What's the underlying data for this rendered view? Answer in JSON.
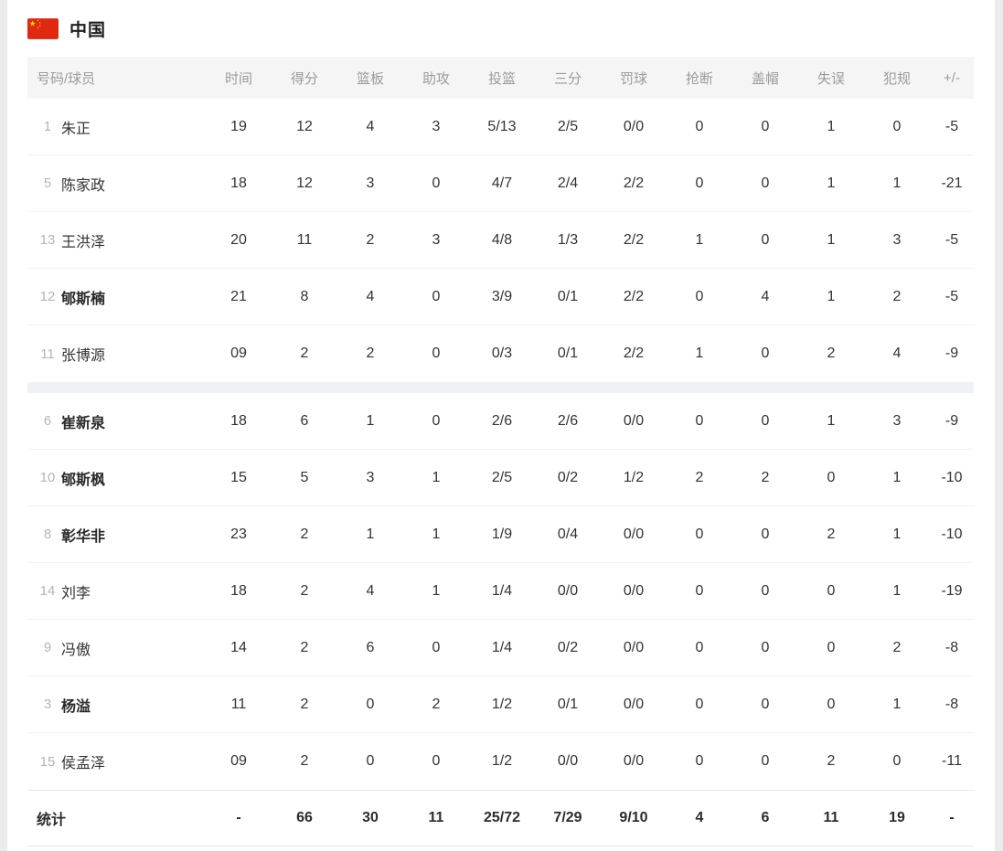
{
  "team": {
    "name": "中国",
    "flag_icon": "china-flag",
    "flag_colors": {
      "field": "#DE2910",
      "stars": "#FFDE00"
    }
  },
  "table": {
    "columns": [
      "号码/球员",
      "时间",
      "得分",
      "篮板",
      "助攻",
      "投篮",
      "三分",
      "罚球",
      "抢断",
      "盖帽",
      "失误",
      "犯规",
      "+/-"
    ],
    "starters_count": 5,
    "players": [
      {
        "number": "1",
        "name": "朱正",
        "bold": false,
        "stats": [
          "19",
          "12",
          "4",
          "3",
          "5/13",
          "2/5",
          "0/0",
          "0",
          "0",
          "1",
          "0",
          "-5"
        ]
      },
      {
        "number": "5",
        "name": "陈家政",
        "bold": false,
        "stats": [
          "18",
          "12",
          "3",
          "0",
          "4/7",
          "2/4",
          "2/2",
          "0",
          "0",
          "1",
          "1",
          "-21"
        ]
      },
      {
        "number": "13",
        "name": "王洪泽",
        "bold": false,
        "stats": [
          "20",
          "11",
          "2",
          "3",
          "4/8",
          "1/3",
          "2/2",
          "1",
          "0",
          "1",
          "3",
          "-5"
        ]
      },
      {
        "number": "12",
        "name": "郇斯楠",
        "bold": true,
        "stats": [
          "21",
          "8",
          "4",
          "0",
          "3/9",
          "0/1",
          "2/2",
          "0",
          "4",
          "1",
          "2",
          "-5"
        ]
      },
      {
        "number": "11",
        "name": "张博源",
        "bold": false,
        "stats": [
          "09",
          "2",
          "2",
          "0",
          "0/3",
          "0/1",
          "2/2",
          "1",
          "0",
          "2",
          "4",
          "-9"
        ]
      },
      {
        "number": "6",
        "name": "崔新泉",
        "bold": true,
        "stats": [
          "18",
          "6",
          "1",
          "0",
          "2/6",
          "2/6",
          "0/0",
          "0",
          "0",
          "1",
          "3",
          "-9"
        ]
      },
      {
        "number": "10",
        "name": "郇斯枫",
        "bold": true,
        "stats": [
          "15",
          "5",
          "3",
          "1",
          "2/5",
          "0/2",
          "1/2",
          "2",
          "2",
          "0",
          "1",
          "-10"
        ]
      },
      {
        "number": "8",
        "name": "彰华非",
        "bold": true,
        "stats": [
          "23",
          "2",
          "1",
          "1",
          "1/9",
          "0/4",
          "0/0",
          "0",
          "0",
          "2",
          "1",
          "-10"
        ]
      },
      {
        "number": "14",
        "name": "刘李",
        "bold": false,
        "stats": [
          "18",
          "2",
          "4",
          "1",
          "1/4",
          "0/0",
          "0/0",
          "0",
          "0",
          "0",
          "1",
          "-19"
        ]
      },
      {
        "number": "9",
        "name": "冯傲",
        "bold": false,
        "stats": [
          "14",
          "2",
          "6",
          "0",
          "1/4",
          "0/2",
          "0/0",
          "0",
          "0",
          "0",
          "2",
          "-8"
        ]
      },
      {
        "number": "3",
        "name": "杨溢",
        "bold": true,
        "stats": [
          "11",
          "2",
          "0",
          "2",
          "1/2",
          "0/1",
          "0/0",
          "0",
          "0",
          "0",
          "1",
          "-8"
        ]
      },
      {
        "number": "15",
        "name": "侯孟泽",
        "bold": false,
        "stats": [
          "09",
          "2",
          "0",
          "0",
          "1/2",
          "0/0",
          "0/0",
          "0",
          "0",
          "2",
          "0",
          "-11"
        ]
      }
    ],
    "totals": {
      "label": "统计",
      "stats": [
        "-",
        "66",
        "30",
        "11",
        "25/72",
        "7/29",
        "9/10",
        "4",
        "6",
        "11",
        "19",
        "-"
      ]
    }
  }
}
